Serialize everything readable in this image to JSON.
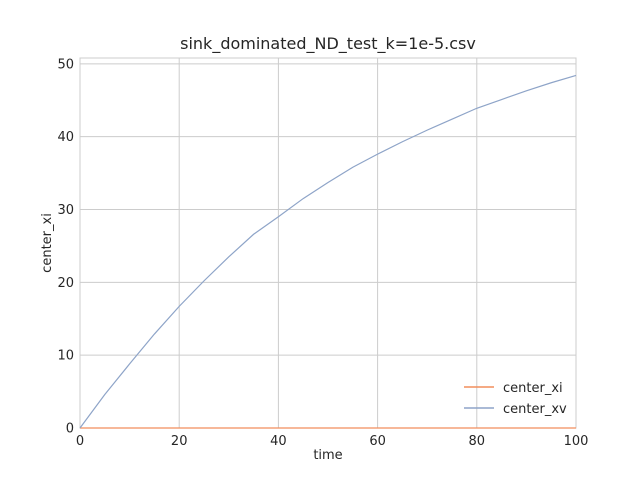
{
  "chart_data": {
    "type": "line",
    "title": "sink_dominated_ND_test_k=1e-5.csv",
    "xlabel": "time",
    "ylabel": "center_xi",
    "xlim": [
      0,
      100
    ],
    "ylim": [
      0,
      50.8
    ],
    "xticks": [
      0,
      20,
      40,
      60,
      80,
      100
    ],
    "yticks": [
      0,
      10,
      20,
      30,
      40,
      50
    ],
    "grid": true,
    "legend_position": "bottom-right",
    "series": [
      {
        "name": "center_xi",
        "color": "#f28e5c",
        "x": [
          0,
          10,
          20,
          30,
          40,
          50,
          60,
          70,
          80,
          90,
          100
        ],
        "y": [
          0,
          0,
          0,
          0,
          0,
          0,
          0,
          0,
          0,
          0,
          0
        ]
      },
      {
        "name": "center_xv",
        "color": "#8ea4c8",
        "x": [
          0,
          5,
          10,
          15,
          20,
          25,
          30,
          35,
          40,
          45,
          50,
          55,
          60,
          65,
          70,
          75,
          80,
          85,
          90,
          95,
          100
        ],
        "y": [
          0,
          4.6,
          8.8,
          12.9,
          16.7,
          20.2,
          23.5,
          26.6,
          29.0,
          31.5,
          33.7,
          35.8,
          37.6,
          39.3,
          40.9,
          42.4,
          43.9,
          45.1,
          46.3,
          47.4,
          48.4
        ]
      }
    ]
  }
}
